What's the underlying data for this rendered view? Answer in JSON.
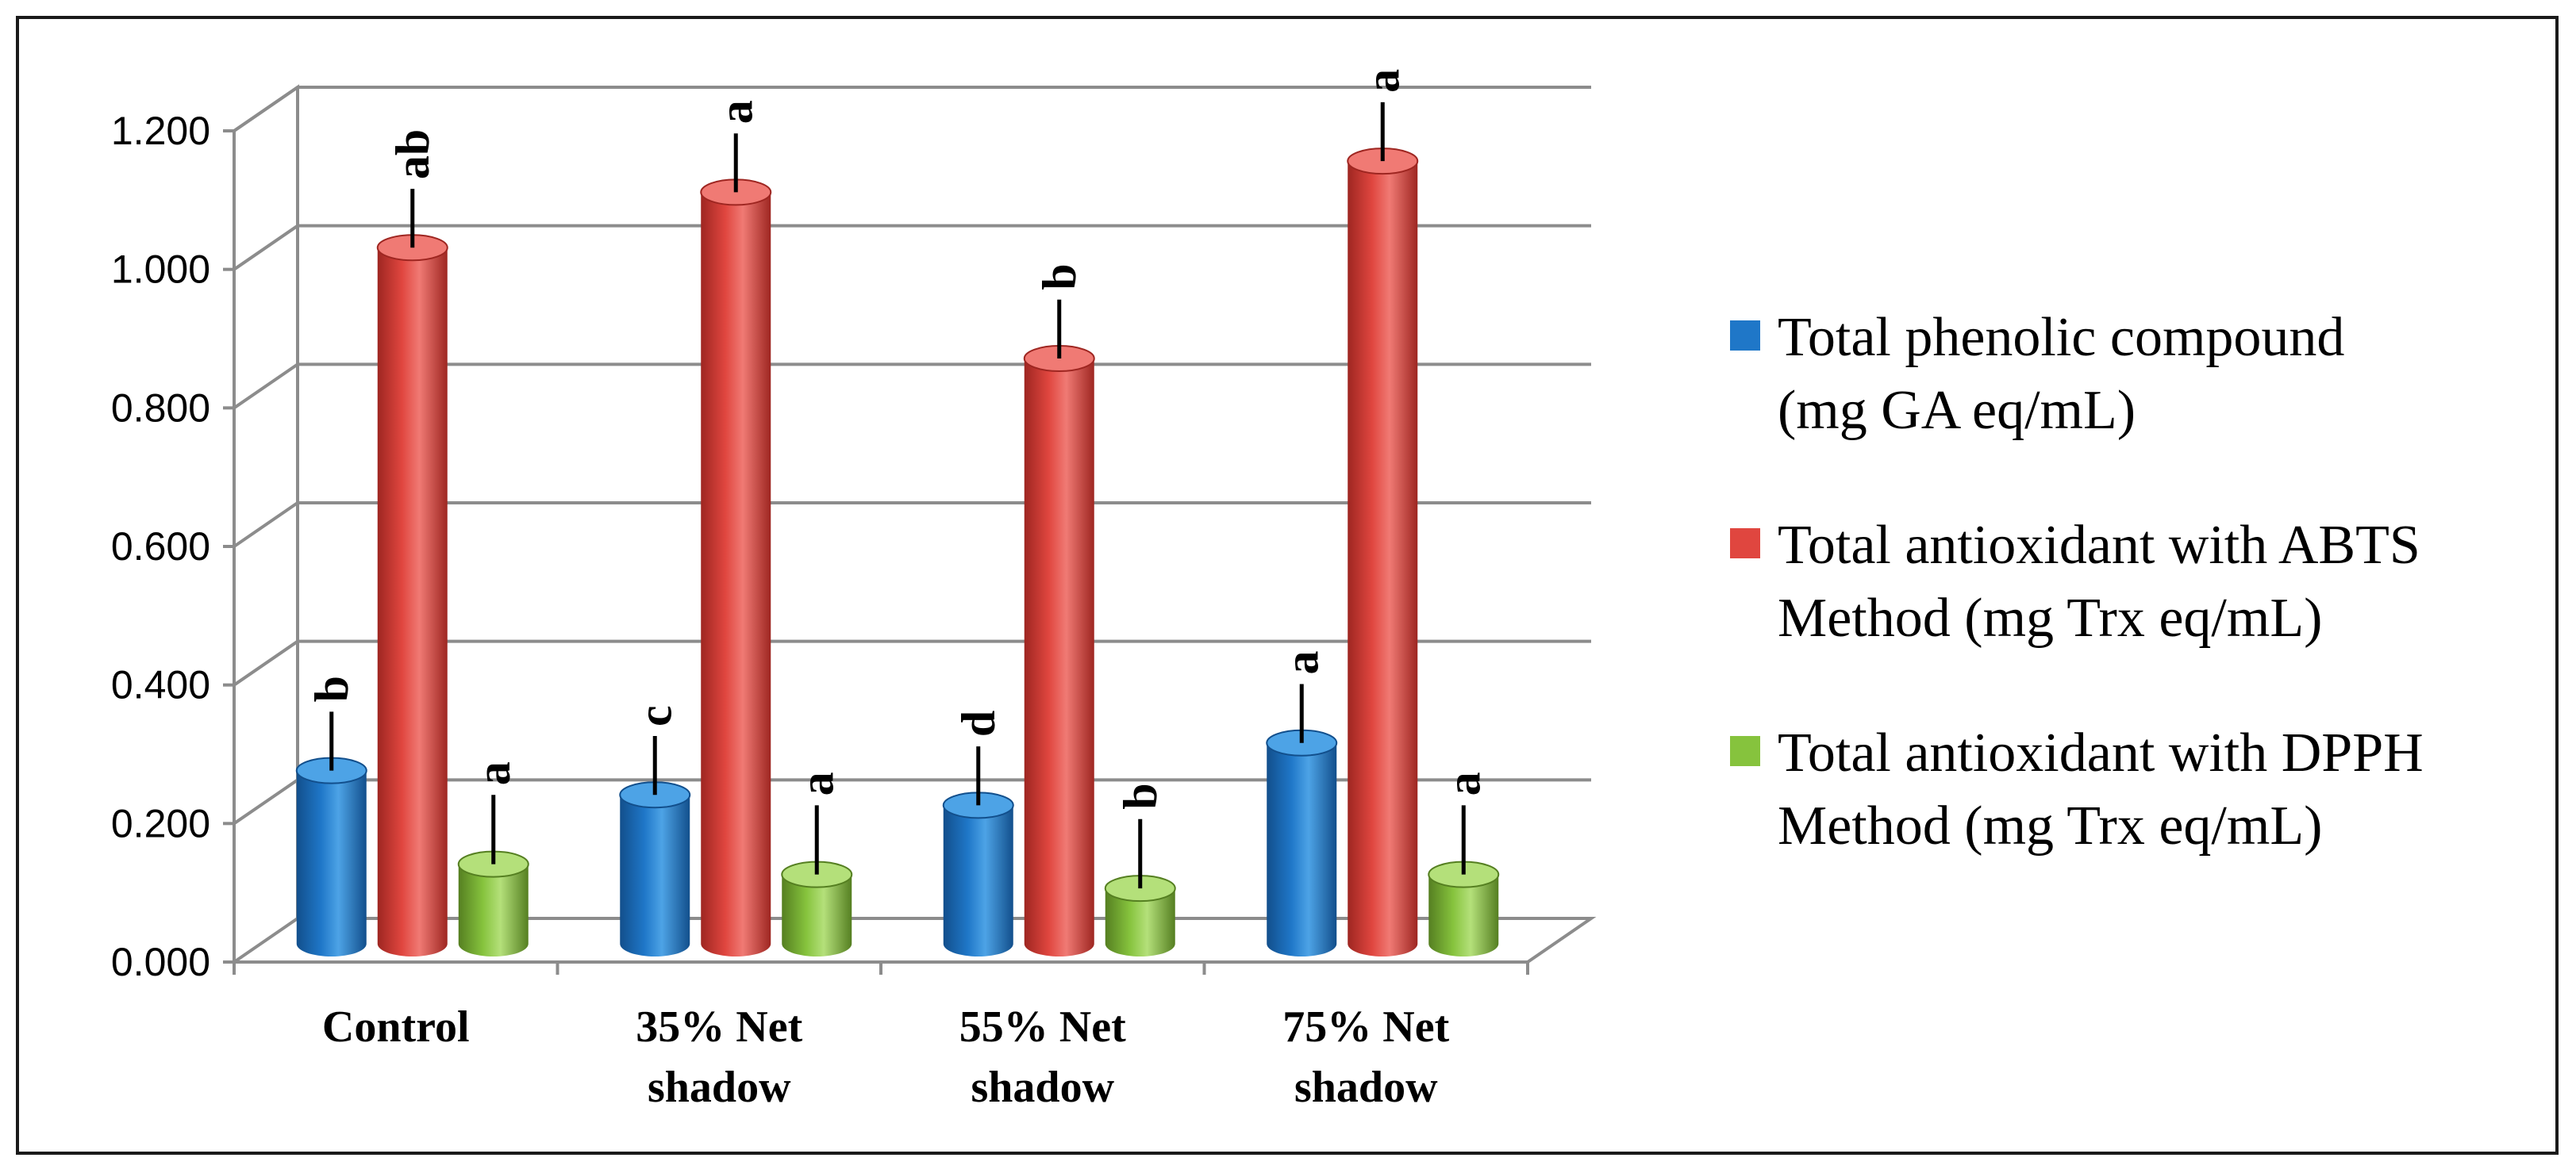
{
  "chart_data": {
    "type": "bar",
    "style": "3d-cylinder",
    "categories": [
      [
        "Control"
      ],
      [
        "35% Net",
        "shadow"
      ],
      [
        "55% Net",
        "shadow"
      ],
      [
        "75% Net",
        "shadow"
      ]
    ],
    "ylim": [
      0,
      1.2
    ],
    "yticks": [
      "0.000",
      "0.200",
      "0.400",
      "0.600",
      "0.800",
      "1.000",
      "1.200"
    ],
    "grid": true,
    "legend_position": "right",
    "series": [
      {
        "name": "Total phenolic compound (mg GA eq/mL)",
        "legend_lines": [
          "Total phenolic compound",
          "(mg GA eq/mL)"
        ],
        "color": "#1f77c8",
        "color_dark": "#124f8c",
        "color_top": "#4da3e6",
        "values": [
          0.25,
          0.215,
          0.2,
          0.29
        ],
        "errors": [
          0.085,
          0.085,
          0.085,
          0.085
        ],
        "letters": [
          "b",
          "c",
          "d",
          "a"
        ]
      },
      {
        "name": "Total antioxidant with ABTS Method (mg Trx eq/mL)",
        "legend_lines": [
          "Total antioxidant with ABTS",
          "Method (mg Trx eq/mL)"
        ],
        "color": "#e0463f",
        "color_dark": "#9e2621",
        "color_top": "#f07a74",
        "values": [
          1.005,
          1.085,
          0.845,
          1.13
        ],
        "errors": [
          0.085,
          0.085,
          0.085,
          0.085
        ],
        "letters": [
          "ab",
          "a",
          "b",
          "a"
        ]
      },
      {
        "name": "Total antioxidant with DPPH Method (mg Trx eq/mL)",
        "legend_lines": [
          "Total antioxidant with DPPH",
          "Method (mg Trx eq/mL)"
        ],
        "color": "#86c33d",
        "color_dark": "#557f21",
        "color_top": "#b4e07a",
        "values": [
          0.115,
          0.1,
          0.08,
          0.1
        ],
        "errors": [
          0.1,
          0.1,
          0.1,
          0.1
        ],
        "letters": [
          "a",
          "a",
          "b",
          "a"
        ]
      }
    ]
  }
}
